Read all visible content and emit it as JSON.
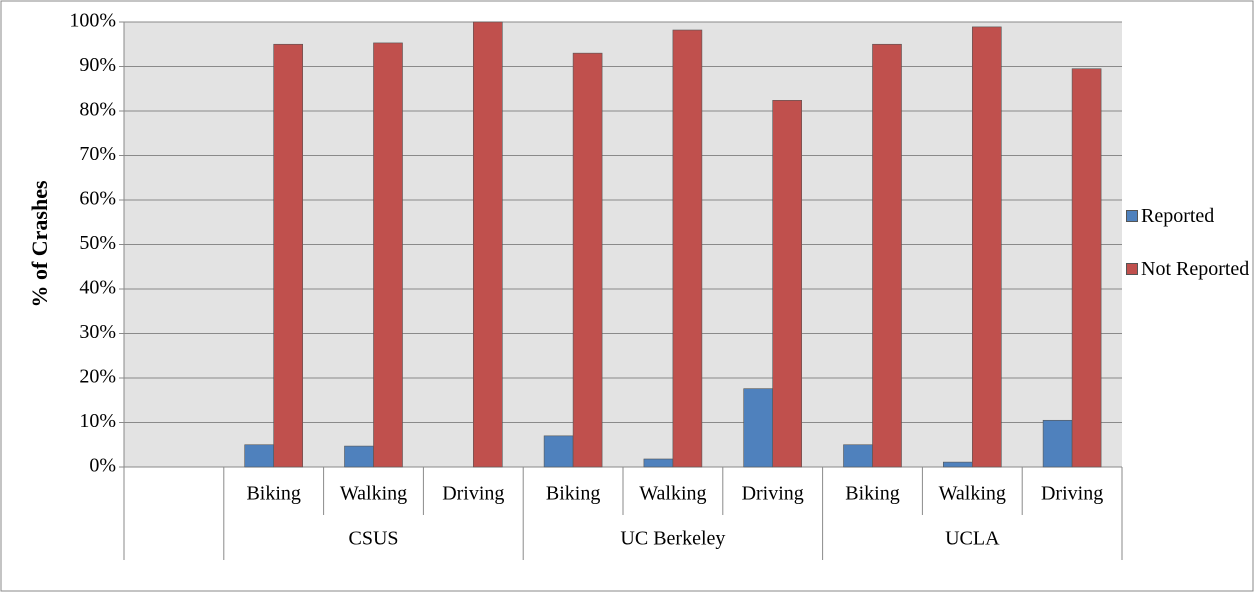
{
  "chart_data": {
    "type": "bar",
    "y_label": "% of Crashes",
    "groups": [
      {
        "name": null,
        "categories": [
          null
        ]
      },
      {
        "name": "CSUS",
        "categories": [
          "Biking",
          "Walking",
          "Driving"
        ]
      },
      {
        "name": "UC Berkeley",
        "categories": [
          "Biking",
          "Walking",
          "Driving"
        ]
      },
      {
        "name": "UCLA",
        "categories": [
          "Biking",
          "Walking",
          "Driving"
        ]
      }
    ],
    "series": [
      {
        "name": "Reported",
        "color": "#4f81bd",
        "values": [
          null,
          5,
          4.7,
          0,
          7,
          1.8,
          17.6,
          5,
          1.1,
          10.5
        ]
      },
      {
        "name": "Not Reported",
        "color": "#c0504d",
        "values": [
          null,
          95,
          95.3,
          100,
          93,
          98.2,
          82.4,
          95,
          98.9,
          89.5
        ]
      }
    ],
    "ylim": [
      0,
      100
    ],
    "yticks": [
      {
        "value": 0,
        "label": "0%"
      },
      {
        "value": 10,
        "label": "10%"
      },
      {
        "value": 20,
        "label": "20%"
      },
      {
        "value": 30,
        "label": "30%"
      },
      {
        "value": 40,
        "label": "40%"
      },
      {
        "value": 50,
        "label": "50%"
      },
      {
        "value": 60,
        "label": "60%"
      },
      {
        "value": 70,
        "label": "70%"
      },
      {
        "value": 80,
        "label": "80%"
      },
      {
        "value": 90,
        "label": "90%"
      },
      {
        "value": 100,
        "label": "100%"
      }
    ],
    "grid": true,
    "legend": "right"
  }
}
